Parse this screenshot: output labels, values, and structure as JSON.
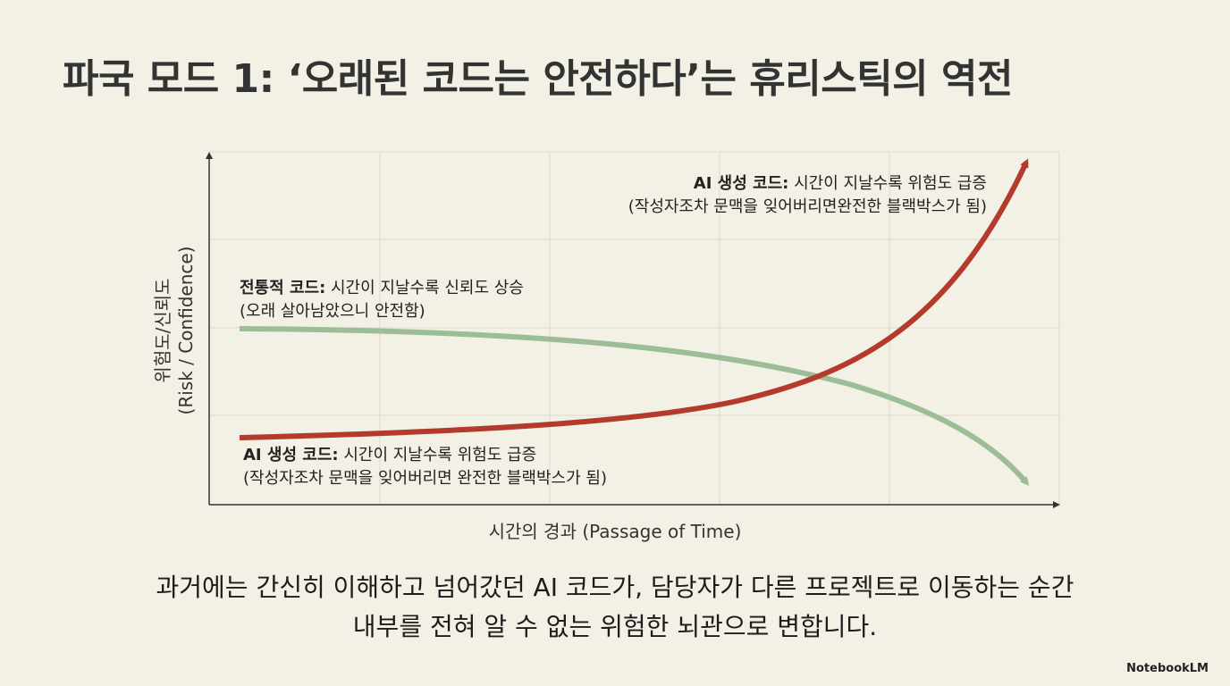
{
  "header": {
    "title": "파국 모드 1: ‘오래된 코드는 안전하다’는 휴리스틱의 역전"
  },
  "chart": {
    "y_axis_label": [
      "위험도/신뢰도",
      "(Risk / Confidence)"
    ],
    "x_axis_label": "시간의 경과 (Passage of Time)",
    "annotations": [
      {
        "lead": "AI 생성 코드:",
        "text": " 시간이 지날수록 위험도 급증",
        "note": "(작성자조차 문맥을 잊어버리면완전한 블랙박스가 됨)"
      },
      {
        "lead": "전통적 코드:",
        "text": " 시간이 지날수록 신뢰도 상승",
        "note": "(오래 살아남았으니 안전함)"
      },
      {
        "lead": "AI 생성 코드:",
        "text": " 시간이 지날수록 위험도 급증",
        "note": "(작성자조차 문맥을 잊어버리면 완전한 블랙박스가 됨)"
      }
    ]
  },
  "caption": [
    "과거에는 간신히 이해하고 넘어갔던 AI 코드가, 담당자가 다른 프로젝트로 이동하는 순간",
    "내부를 전혀 알 수 없는 위험한 뇌관으로 변합니다."
  ],
  "footer": {
    "logo": "NotebookLM"
  }
}
